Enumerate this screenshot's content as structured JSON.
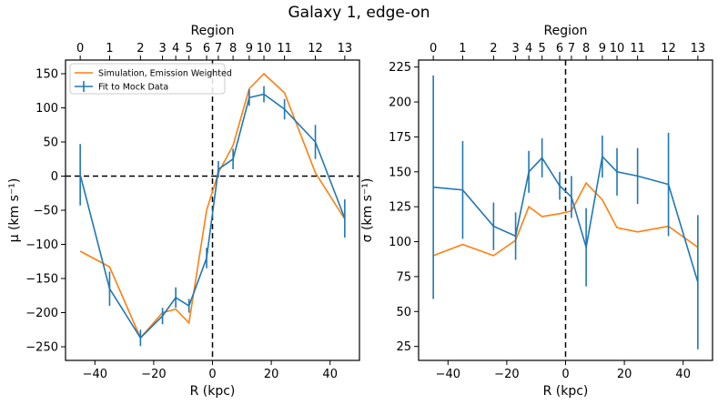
{
  "figure": {
    "suptitle": "Galaxy 1, edge-on"
  },
  "colors": {
    "fit": "#1f77b4",
    "simulation": "#ff7f0e",
    "axes": "#000000"
  },
  "chart_data": [
    {
      "type": "line",
      "title": "",
      "xlabel": "R (kpc)",
      "ylabel": "μ (km s⁻¹)",
      "top_xlabel": "Region",
      "xlim": [
        -50,
        50
      ],
      "ylim": [
        -270,
        170
      ],
      "xticks": [
        -40,
        -20,
        0,
        20,
        40
      ],
      "yticks": [
        -250,
        -200,
        -150,
        -100,
        -50,
        0,
        50,
        100,
        150
      ],
      "region_ticks": [
        {
          "label": "0",
          "r": -45
        },
        {
          "label": "1",
          "r": -35
        },
        {
          "label": "2",
          "r": -24.5
        },
        {
          "label": "3",
          "r": -17
        },
        {
          "label": "4",
          "r": -12.5
        },
        {
          "label": "5",
          "r": -8
        },
        {
          "label": "6",
          "r": -2
        },
        {
          "label": "7",
          "r": 2
        },
        {
          "label": "8",
          "r": 7
        },
        {
          "label": "9",
          "r": 12.5
        },
        {
          "label": "10",
          "r": 17.5
        },
        {
          "label": "11",
          "r": 24.5
        },
        {
          "label": "12",
          "r": 35
        },
        {
          "label": "13",
          "r": 45
        }
      ],
      "reference_lines": {
        "vertical_x": 0,
        "horizontal_y": 0
      },
      "legend": {
        "placement": "upper-left"
      },
      "series": [
        {
          "name": "Simulation, Emission Weighted",
          "color": "#ff7f0e",
          "x": [
            -45,
            -35,
            -24.5,
            -17,
            -12.5,
            -8,
            -2,
            2,
            7,
            12.5,
            17.5,
            24.5,
            35,
            45
          ],
          "y": [
            -110,
            -133,
            -237,
            -200,
            -195,
            -215,
            -50,
            5,
            45,
            128,
            150,
            122,
            5,
            -63
          ]
        },
        {
          "name": "Fit to Mock Data",
          "color": "#1f77b4",
          "errorbars": true,
          "x": [
            -45,
            -35,
            -24.5,
            -17,
            -12.5,
            -8,
            -2,
            2,
            7,
            12.5,
            17.5,
            24.5,
            35,
            45
          ],
          "y": [
            2,
            -165,
            -237,
            -205,
            -178,
            -190,
            -120,
            10,
            25,
            115,
            120,
            98,
            50,
            -62
          ],
          "yerr": [
            45,
            25,
            12,
            12,
            15,
            10,
            15,
            12,
            15,
            12,
            12,
            15,
            25,
            28
          ]
        }
      ]
    },
    {
      "type": "line",
      "title": "",
      "xlabel": "R (kpc)",
      "ylabel": "σ (km s⁻¹)",
      "top_xlabel": "Region",
      "xlim": [
        -50,
        50
      ],
      "ylim": [
        15,
        230
      ],
      "xticks": [
        -40,
        -20,
        0,
        20,
        40
      ],
      "yticks": [
        25,
        50,
        75,
        100,
        125,
        150,
        175,
        200,
        225
      ],
      "region_ticks": [
        {
          "label": "0",
          "r": -45
        },
        {
          "label": "1",
          "r": -35
        },
        {
          "label": "2",
          "r": -24.5
        },
        {
          "label": "3",
          "r": -17
        },
        {
          "label": "4",
          "r": -12.5
        },
        {
          "label": "5",
          "r": -8
        },
        {
          "label": "6",
          "r": -2
        },
        {
          "label": "7",
          "r": 2
        },
        {
          "label": "8",
          "r": 7
        },
        {
          "label": "9",
          "r": 12.5
        },
        {
          "label": "10",
          "r": 17.5
        },
        {
          "label": "11",
          "r": 24.5
        },
        {
          "label": "12",
          "r": 35
        },
        {
          "label": "13",
          "r": 45
        }
      ],
      "reference_lines": {
        "vertical_x": 0
      },
      "series": [
        {
          "name": "Simulation, Emission Weighted",
          "color": "#ff7f0e",
          "x": [
            -45,
            -35,
            -24.5,
            -17,
            -12.5,
            -8,
            -2,
            2,
            7,
            12.5,
            17.5,
            24.5,
            35,
            45
          ],
          "y": [
            90,
            98,
            90,
            101,
            125,
            118,
            120,
            122,
            142,
            130,
            110,
            107,
            111,
            96
          ]
        },
        {
          "name": "Fit to Mock Data",
          "color": "#1f77b4",
          "errorbars": true,
          "x": [
            -45,
            -35,
            -24.5,
            -17,
            -12.5,
            -8,
            -2,
            2,
            7,
            12.5,
            17.5,
            24.5,
            35,
            45
          ],
          "y": [
            139,
            137,
            111,
            104,
            150,
            160,
            140,
            132,
            96,
            161,
            150,
            147,
            141,
            71
          ],
          "yerr": [
            80,
            35,
            17,
            17,
            15,
            14,
            10,
            15,
            28,
            15,
            17,
            20,
            37,
            48
          ]
        }
      ]
    }
  ]
}
